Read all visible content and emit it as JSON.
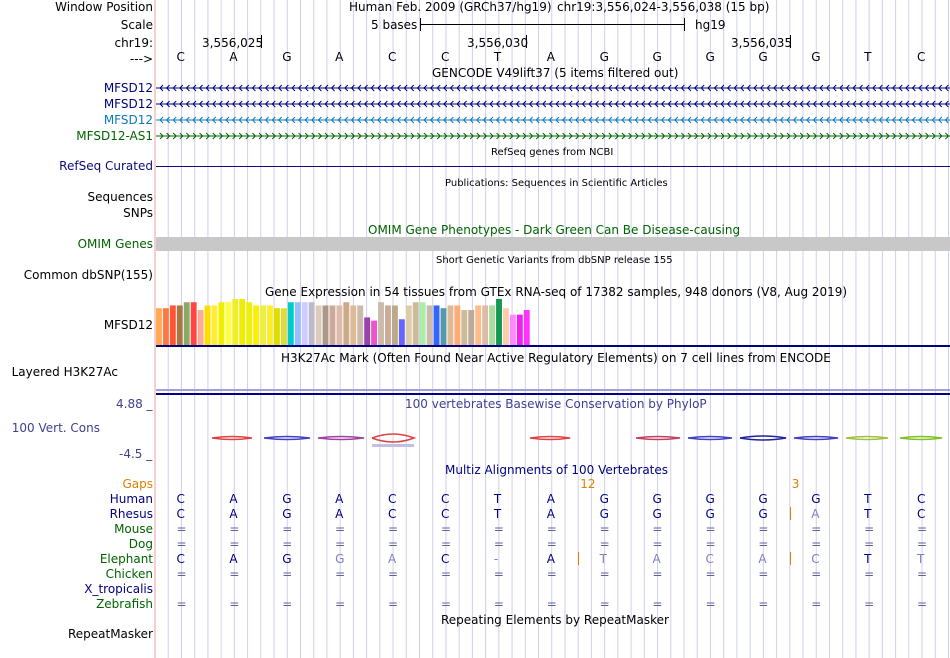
{
  "header": {
    "window_position_label": "Window Position",
    "assembly": "Human Feb. 2009 (GRCh37/hg19)",
    "position": "chr19:3,556,024-3,556,038 (15 bp)",
    "scale_label": "Scale",
    "scale_text": "5 bases",
    "scale_assembly": "hg19",
    "chrom_label": "chr19:",
    "arrow_label": "--->",
    "ticks": [
      "3,556,025",
      "3,556,030",
      "3,556,035"
    ]
  },
  "sequence": [
    "C",
    "A",
    "G",
    "A",
    "C",
    "C",
    "T",
    "A",
    "G",
    "G",
    "G",
    "G",
    "G",
    "T",
    "C"
  ],
  "tracks": {
    "gencode": {
      "title": "GENCODE V49lift37 (5 items filtered out)",
      "items": [
        {
          "label": "MFSD12",
          "color": "#000080",
          "strand": "minus"
        },
        {
          "label": "MFSD12",
          "color": "#000080",
          "strand": "minus"
        },
        {
          "label": "MFSD12",
          "color": "#0c78c0",
          "strand": "minus"
        },
        {
          "label": "MFSD12-AS1",
          "color": "#006400",
          "strand": "plus"
        }
      ]
    },
    "refseq": {
      "label": "RefSeq Curated",
      "title": "RefSeq genes from NCBI",
      "color": "#0c0c78"
    },
    "publications": {
      "title": "Publications: Sequences in Scientific Articles",
      "label1": "Sequences",
      "label2": "SNPs"
    },
    "omim": {
      "title": "OMIM Gene Phenotypes - Dark Green Can Be Disease-causing",
      "label": "OMIM Genes",
      "color": "#006400",
      "bar_color": "#c8c8c8"
    },
    "dbsnp": {
      "title": "Short Genetic Variants from dbSNP release 155",
      "label": "Common dbSNP(155)"
    },
    "gtex": {
      "title": "Gene Expression in 54 tissues from GTEx RNA-seq of 17382 samples, 948 donors (V8, Aug 2019)",
      "label": "MFSD12",
      "bar_heights": [
        0.8,
        0.8,
        0.86,
        0.86,
        0.93,
        0.93,
        0.76,
        0.86,
        0.86,
        0.93,
        0.93,
        1.0,
        1.0,
        0.93,
        0.86,
        0.86,
        0.86,
        0.8,
        0.8,
        0.93,
        0.93,
        0.93,
        0.93,
        0.86,
        0.86,
        0.86,
        0.86,
        0.93,
        0.86,
        0.86,
        0.6,
        0.53,
        0.93,
        0.86,
        0.86,
        0.56,
        0.86,
        0.93,
        0.93,
        0.86,
        0.86,
        0.8,
        0.86,
        0.86,
        0.76,
        0.76,
        0.86,
        0.86,
        0.86,
        1.0,
        0.8,
        0.66,
        0.66,
        0.76
      ],
      "bar_colors": [
        "#ffaa55",
        "#ff7744",
        "#ff5533",
        "#aa7744",
        "#88aa66",
        "#ff4444",
        "#ffaa99",
        "#ffdd00",
        "#ffee33",
        "#eeee00",
        "#ffff44",
        "#eeee22",
        "#eeee00",
        "#eeee11",
        "#ffee00",
        "#eeee44",
        "#ffee22",
        "#dddd00",
        "#dddd33",
        "#00cccc",
        "#99bbff",
        "#ccccff",
        "#bbbbcc",
        "#ddccbb",
        "#aa9988",
        "#ccaa99",
        "#ddbbaa",
        "#ccaa88",
        "#ddbb99",
        "#ccbbaa",
        "#9944aa",
        "#ee55cc",
        "#ccbbaa",
        "#ccaa99",
        "#bbaa88",
        "#6666ff",
        "#ddccaa",
        "#ccbb99",
        "#aaeeaa",
        "#ccbbaa",
        "#3366ff",
        "#5599aa",
        "#ddbb99",
        "#ffaa77",
        "#ccbb99",
        "#bbaa99",
        "#ffbb88",
        "#ddbbaa",
        "#aadd99",
        "#119955",
        "#ffccaa",
        "#ff88ff",
        "#ee22ee",
        "#ff33ff"
      ]
    },
    "h3k27ac": {
      "title": "H3K27Ac Mark (Often Found Near Active Regulatory Elements) on 7 cell lines from ENCODE",
      "label": "Layered H3K27Ac"
    },
    "cons": {
      "title": "100 vertebrates Basewise Conservation by PhyloP",
      "label": "100 Vert. Cons",
      "ymax": "4.88 _",
      "ymin": "-4.5 _",
      "color": "#404090"
    },
    "multiz": {
      "title": "Multiz Alignments of 100 Vertebrates",
      "gaps_label": "Gaps",
      "gaps": [
        {
          "col": 7.5,
          "text": "12"
        },
        {
          "col": 11.5,
          "text": "3"
        }
      ],
      "species": [
        {
          "name": "Human",
          "color": "#000080",
          "seq": [
            "C",
            "A",
            "G",
            "A",
            "C",
            "C",
            "T",
            "A",
            "G",
            "G",
            "G",
            "G",
            "G",
            "T",
            "C"
          ],
          "faded": []
        },
        {
          "name": "Rhesus",
          "color": "#000080",
          "seq": [
            "C",
            "A",
            "G",
            "A",
            "C",
            "C",
            "T",
            "A",
            "G",
            "G",
            "G",
            "G",
            "A",
            "T",
            "C"
          ],
          "faded": [
            12
          ]
        },
        {
          "name": "Mouse",
          "color": "#006400",
          "seq": [
            "=",
            "=",
            "=",
            "=",
            "=",
            "=",
            "=",
            "=",
            "=",
            "=",
            "=",
            "=",
            "=",
            "=",
            "="
          ],
          "faded": []
        },
        {
          "name": "Dog",
          "color": "#006400",
          "seq": [
            "=",
            "=",
            "=",
            "=",
            "=",
            "=",
            "=",
            "=",
            "=",
            "=",
            "=",
            "=",
            "=",
            "=",
            "="
          ],
          "faded": []
        },
        {
          "name": "Elephant",
          "color": "#006400",
          "seq": [
            "C",
            "A",
            "G",
            "G",
            "A",
            "C",
            "-",
            "A",
            "T",
            "A",
            "C",
            "A",
            "C",
            "T",
            "T"
          ],
          "faded": [
            3,
            4,
            6,
            8,
            9,
            10,
            11,
            12,
            14
          ]
        },
        {
          "name": "Chicken",
          "color": "#006400",
          "seq": [
            "=",
            "=",
            "=",
            "=",
            "=",
            "=",
            "=",
            "=",
            "=",
            "=",
            "=",
            "=",
            "=",
            "=",
            "="
          ],
          "faded": []
        },
        {
          "name": "X_tropicalis",
          "color": "#000080",
          "seq": [
            "",
            "",
            "",
            "",
            "",
            "",
            "",
            "",
            "",
            "",
            "",
            "",
            "",
            "",
            ""
          ],
          "faded": []
        },
        {
          "name": "Zebrafish",
          "color": "#006400",
          "seq": [
            "=",
            "=",
            "=",
            "=",
            "=",
            "=",
            "=",
            "=",
            "=",
            "=",
            "=",
            "=",
            "=",
            "=",
            "="
          ],
          "faded": []
        }
      ]
    },
    "repeatmasker": {
      "title": "Repeating Elements by RepeatMasker",
      "label": "RepeatMasker"
    }
  }
}
